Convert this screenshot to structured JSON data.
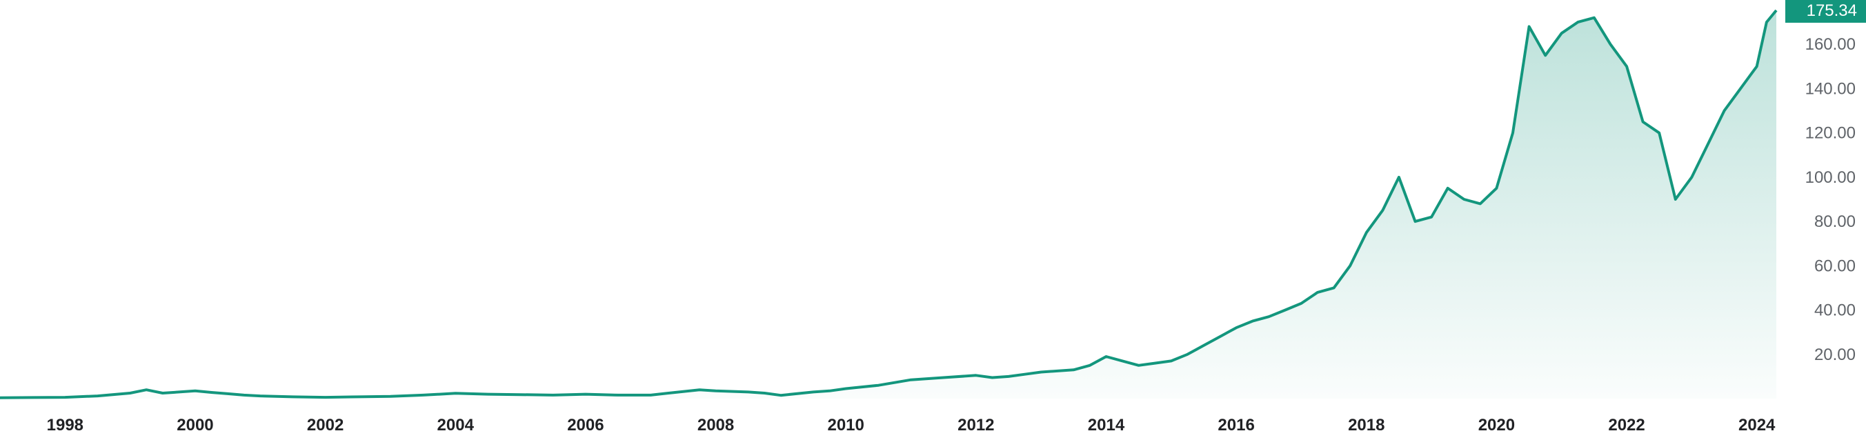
{
  "chart_data": {
    "type": "area",
    "title": "",
    "xlabel": "",
    "ylabel": "",
    "xlim": [
      1997.0,
      2024.3
    ],
    "ylim": [
      0,
      180
    ],
    "x_ticks": [
      1998,
      2000,
      2002,
      2004,
      2006,
      2008,
      2010,
      2012,
      2014,
      2016,
      2018,
      2020,
      2022,
      2024
    ],
    "x_tick_labels": [
      "1998",
      "2000",
      "2002",
      "2004",
      "2006",
      "2008",
      "2010",
      "2012",
      "2014",
      "2016",
      "2018",
      "2020",
      "2022",
      "2024"
    ],
    "y_ticks": [
      20,
      40,
      60,
      80,
      100,
      120,
      140,
      160
    ],
    "y_tick_labels": [
      "20.00",
      "40.00",
      "60.00",
      "80.00",
      "100.00",
      "120.00",
      "140.00",
      "160.00"
    ],
    "last_price": "175.34",
    "last_value": 175.34,
    "grid": false,
    "line_color": "#13967d",
    "fill_color": "#13967d",
    "badge_color": "#13967d",
    "series": [
      {
        "x": [
          1997.0,
          1997.5,
          1998.0,
          1998.5,
          1999.0,
          1999.25,
          1999.5,
          1999.75,
          2000.0,
          2000.25,
          2000.5,
          2000.75,
          2001.0,
          2001.5,
          2002.0,
          2002.5,
          2003.0,
          2003.5,
          2004.0,
          2004.5,
          2005.0,
          2005.5,
          2006.0,
          2006.5,
          2007.0,
          2007.25,
          2007.5,
          2007.75,
          2008.0,
          2008.5,
          2008.75,
          2009.0,
          2009.5,
          2009.75,
          2010.0,
          2010.5,
          2011.0,
          2011.5,
          2012.0,
          2012.25,
          2012.5,
          2012.75,
          2013.0,
          2013.5,
          2013.75,
          2014.0,
          2014.25,
          2014.5,
          2014.75,
          2015.0,
          2015.25,
          2015.5,
          2015.75,
          2016.0,
          2016.25,
          2016.5,
          2016.75,
          2017.0,
          2017.25,
          2017.5,
          2017.75,
          2018.0,
          2018.25,
          2018.5,
          2018.75,
          2019.0,
          2019.25,
          2019.5,
          2019.75,
          2020.0,
          2020.25,
          2020.5,
          2020.75,
          2021.0,
          2021.25,
          2021.5,
          2021.75,
          2022.0,
          2022.25,
          2022.5,
          2022.75,
          2023.0,
          2023.25,
          2023.5,
          2023.75,
          2024.0,
          2024.15,
          2024.3
        ],
        "values": [
          0.4,
          0.5,
          0.6,
          1.2,
          2.5,
          4.0,
          2.5,
          3.0,
          3.5,
          2.8,
          2.2,
          1.6,
          1.2,
          0.8,
          0.6,
          0.8,
          1.0,
          1.6,
          2.4,
          2.0,
          1.8,
          1.6,
          2.0,
          1.6,
          1.6,
          2.4,
          3.2,
          4.0,
          3.5,
          3.0,
          2.5,
          1.5,
          3.0,
          3.5,
          4.5,
          6.0,
          8.5,
          9.5,
          10.5,
          9.5,
          10.0,
          11.0,
          12.0,
          13.0,
          15.0,
          19.0,
          17.0,
          15.0,
          16.0,
          17.0,
          20.0,
          24.0,
          28.0,
          32.0,
          35.0,
          37.0,
          40.0,
          43.0,
          48.0,
          50.0,
          60.0,
          75.0,
          85.0,
          100.0,
          80.0,
          82.0,
          95.0,
          90.0,
          88.0,
          95.0,
          120.0,
          168.0,
          155.0,
          165.0,
          170.0,
          172.0,
          160.0,
          150.0,
          125.0,
          120.0,
          90.0,
          100.0,
          115.0,
          130.0,
          140.0,
          150.0,
          170.0,
          175.34
        ]
      }
    ]
  }
}
